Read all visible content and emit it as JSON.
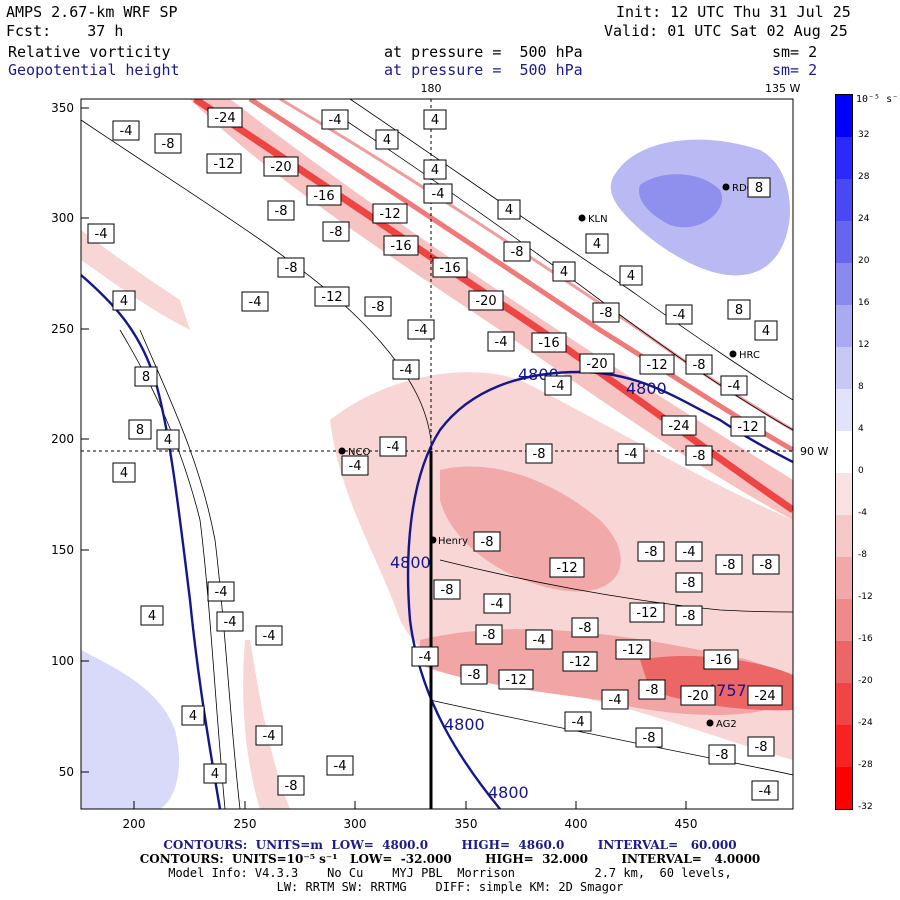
{
  "header": {
    "model": "AMPS 2.67-km WRF SP",
    "forecast": "Fcst:    37 h",
    "init": "Init: 12 UTC Thu 31 Jul 25",
    "valid": "Valid: 01 UTC Sat 02 Aug 25",
    "field1": "Relative vorticity",
    "field2": "Geopotential height",
    "pressure1": "at pressure =  500 hPa",
    "pressure2": "at pressure =  500 hPa",
    "sm1": "sm= 2",
    "sm2": "sm= 2"
  },
  "map": {
    "lon_top_180": "180",
    "lon_top_135w": "135 W",
    "lon_right_90w": "90 W",
    "x_ticks": [
      "200",
      "250",
      "300",
      "350",
      "400",
      "450"
    ],
    "y_ticks": [
      "350",
      "300",
      "250",
      "200",
      "150",
      "100",
      "50"
    ],
    "stations": [
      {
        "name": "NCO"
      },
      {
        "name": "Henry"
      },
      {
        "name": "KLN"
      },
      {
        "name": "RDG"
      },
      {
        "name": "HRC"
      },
      {
        "name": "AG2"
      }
    ],
    "height_labels": [
      "4800",
      "4800",
      "4800",
      "4800",
      "4800"
    ],
    "low_label": "4757",
    "vort_labels": [
      "-4",
      "-8",
      "-12",
      "-16",
      "-20",
      "-24",
      "4",
      "8"
    ]
  },
  "colorbar": {
    "unit": "10⁻⁵ s⁻¹",
    "ticks": [
      "32",
      "28",
      "24",
      "20",
      "16",
      "12",
      "8",
      "4",
      "0",
      "-4",
      "-8",
      "-12",
      "-16",
      "-20",
      "-24",
      "-28",
      "-32"
    ],
    "colors": [
      "#0000ff",
      "#2a2aff",
      "#4848f5",
      "#6565ee",
      "#8a8aee",
      "#aaaaf2",
      "#c8c8f7",
      "#e2e2fb",
      "#ffffff",
      "#fbe2e2",
      "#f6c8c8",
      "#f2a8a8",
      "#ee8a8a",
      "#ec6666",
      "#f24444",
      "#f82222",
      "#ff0000"
    ]
  },
  "footer": {
    "line1": "CONTOURS:  UNITS=m  LOW=  4800.0        HIGH=  4860.0        INTERVAL=   60.000",
    "line2": "CONTOURS:  UNITS=10⁻⁵ s⁻¹   LOW=  -32.000        HIGH=  32.000        INTERVAL=   4.0000",
    "line3": "Model Info: V4.3.3    No Cu    MYJ PBL  Morrison           2.7 km,  60 levels,",
    "line4": "LW: RRTM SW: RRTMG    DIFF: simple KM: 2D Smagor"
  }
}
